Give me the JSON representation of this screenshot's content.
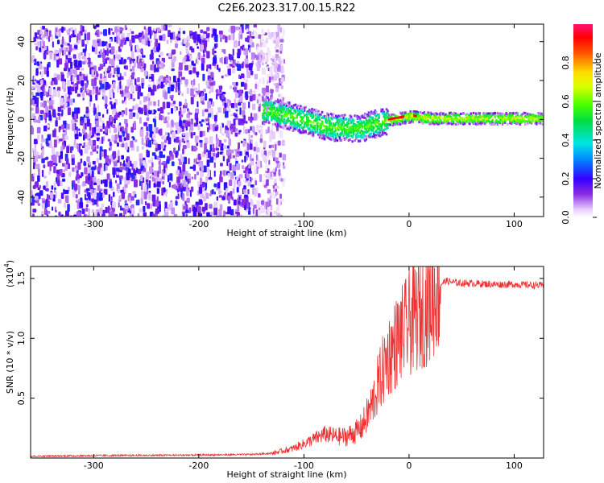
{
  "title": "C2E6.2023.317.00.15.R22",
  "chart_data": [
    {
      "type": "heatmap",
      "name": "spectrogram",
      "xlabel": "Height of straight line (km)",
      "ylabel": "Frequency (Hz)",
      "xlim": [
        -360,
        128
      ],
      "ylim": [
        -50,
        49
      ],
      "xticks": [
        -300,
        -200,
        -100,
        0,
        100
      ],
      "yticks": [
        -40,
        -20,
        0,
        20,
        40
      ],
      "colorbar": {
        "label": "Normalized spectral amplitude",
        "range": [
          0.0,
          1.0
        ],
        "ticks": [
          0.0,
          0.2,
          0.4,
          0.6,
          0.8
        ],
        "colormap": "rainbow"
      },
      "features": {
        "noise_region_x": [
          -360,
          -130
        ],
        "tone_track": {
          "x": [
            -135,
            -120,
            -100,
            -80,
            -60,
            -45,
            -35,
            -20,
            0,
            20,
            50,
            100,
            128
          ],
          "freq_hz": [
            5,
            3,
            0,
            -3,
            -4,
            -4,
            -2,
            0,
            2,
            1,
            1,
            1,
            1
          ]
        },
        "peak_region_x": [
          -25,
          30
        ]
      }
    },
    {
      "type": "line",
      "name": "snr",
      "xlabel": "Height of straight line (km)",
      "ylabel": "SNR (10 * v/v)",
      "scale_label": "(x10",
      "scale_exp": "4",
      "xlim": [
        -360,
        128
      ],
      "ylim": [
        0,
        1.6
      ],
      "xticks": [
        -300,
        -200,
        -100,
        0,
        100
      ],
      "yticks": [
        0.5,
        1.0,
        1.5
      ],
      "ytick_labels": [
        "0.5",
        "1.0",
        "1.5"
      ],
      "line_color": "#ee3333",
      "series": [
        {
          "x": [
            -360,
            -300,
            -200,
            -150,
            -130,
            -110,
            -100,
            -90,
            -80,
            -70,
            -60,
            -50,
            -45,
            -40,
            -35,
            -30,
            -25,
            -20,
            -15,
            -10,
            -5,
            0,
            5,
            10,
            15,
            20,
            25,
            30,
            35,
            40,
            50,
            60,
            80,
            100,
            128
          ],
          "values": [
            0.015,
            0.02,
            0.025,
            0.03,
            0.04,
            0.08,
            0.12,
            0.16,
            0.2,
            0.18,
            0.18,
            0.22,
            0.26,
            0.35,
            0.45,
            0.6,
            0.72,
            0.85,
            0.92,
            1.0,
            1.05,
            1.12,
            1.18,
            1.2,
            1.25,
            1.3,
            1.38,
            1.45,
            1.48,
            1.47,
            1.46,
            1.46,
            1.45,
            1.45,
            1.44
          ]
        }
      ]
    }
  ]
}
